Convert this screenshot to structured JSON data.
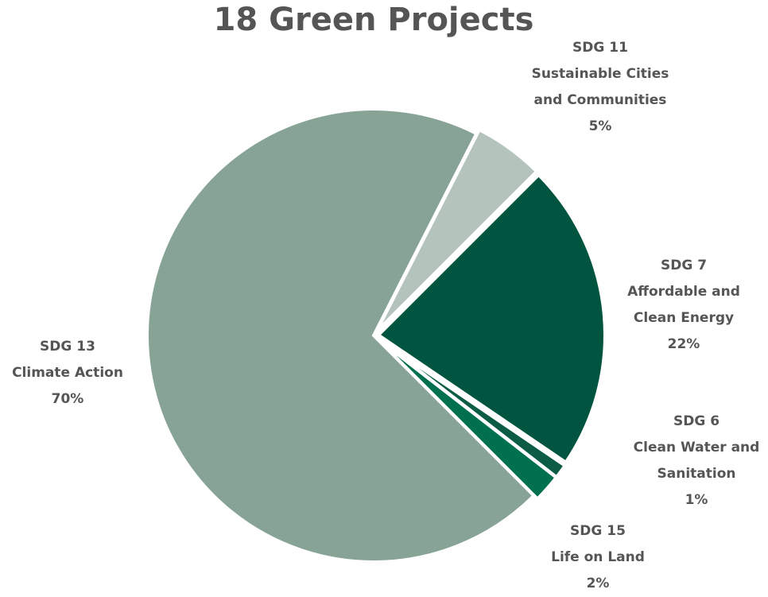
{
  "chart_data": {
    "type": "pie",
    "title": "18 Green Projects",
    "categories": [
      "SDG 11",
      "SDG 7",
      "SDG 6",
      "SDG 15",
      "SDG 13"
    ],
    "descriptions": [
      "Sustainable Cities and Communities",
      "Affordable and Clean Energy",
      "Clean Water and Sanitation",
      "Life on Land",
      "Climate Action"
    ],
    "values": [
      5,
      22,
      1,
      2,
      70
    ],
    "value_labels": [
      "5%",
      "22%",
      "1%",
      "2%",
      "70%"
    ],
    "colors": [
      "#b4c4bc",
      "#005440",
      "#0b5b45",
      "#00704f",
      "#87a396"
    ]
  }
}
